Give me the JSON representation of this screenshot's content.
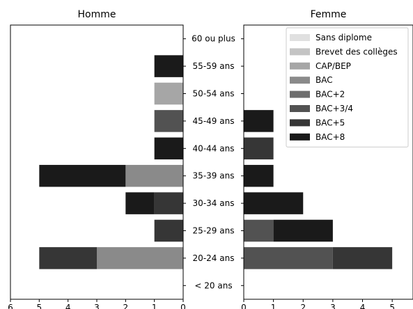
{
  "chart_data": {
    "type": "bar",
    "orientation": "horizontal",
    "stacked": true,
    "layout": "population-pyramid",
    "categories": [
      "< 20 ans",
      "20-24 ans",
      "25-29 ans",
      "30-34 ans",
      "35-39 ans",
      "40-44 ans",
      "45-49 ans",
      "50-54 ans",
      "55-59 ans",
      "60 ou plus"
    ],
    "series_colors": {
      "Sans diplome": "#e0e0e0",
      "Brevet des collèges": "#c4c4c4",
      "CAP/BEP": "#a6a6a6",
      "BAC": "#8a8a8a",
      "BAC+2": "#6e6e6e",
      "BAC+3/4": "#525252",
      "BAC+5": "#363636",
      "BAC+8": "#1a1a1a"
    },
    "legend": {
      "position": "upper-right",
      "panel": "Femme",
      "entries": [
        "Sans diplome",
        "Brevet des collèges",
        "CAP/BEP",
        "BAC",
        "BAC+2",
        "BAC+3/4",
        "BAC+5",
        "BAC+8"
      ]
    },
    "panels": [
      {
        "title": "Homme",
        "xlim": [
          6,
          0
        ],
        "inverted": true,
        "xticks": [
          6,
          5,
          4,
          3,
          2,
          1,
          0
        ],
        "series": [
          {
            "name": "Sans diplome",
            "values": [
              0,
              0,
              0,
              0,
              0,
              0,
              0,
              0,
              0,
              0
            ]
          },
          {
            "name": "Brevet des collèges",
            "values": [
              0,
              0,
              0,
              0,
              0,
              0,
              0,
              0,
              0,
              0
            ]
          },
          {
            "name": "CAP/BEP",
            "values": [
              0,
              0,
              0,
              0,
              0,
              0,
              0,
              1,
              0,
              0
            ]
          },
          {
            "name": "BAC",
            "values": [
              0,
              3,
              0,
              0,
              2,
              0,
              0,
              0,
              0,
              0
            ]
          },
          {
            "name": "BAC+2",
            "values": [
              0,
              0,
              0,
              0,
              0,
              0,
              0,
              0,
              0,
              0
            ]
          },
          {
            "name": "BAC+3/4",
            "values": [
              0,
              0,
              0,
              0,
              0,
              0,
              1,
              0,
              0,
              0
            ]
          },
          {
            "name": "BAC+5",
            "values": [
              0,
              2,
              1,
              1,
              0,
              0,
              0,
              0,
              0,
              0
            ]
          },
          {
            "name": "BAC+8",
            "values": [
              0,
              0,
              0,
              1,
              3,
              1,
              0,
              0,
              1,
              0
            ]
          }
        ]
      },
      {
        "title": "Femme",
        "xlim": [
          0,
          5.7
        ],
        "inverted": false,
        "xticks": [
          0,
          1,
          2,
          3,
          4,
          5
        ],
        "series": [
          {
            "name": "Sans diplome",
            "values": [
              0,
              0,
              0,
              0,
              0,
              0,
              0,
              0,
              0,
              0
            ]
          },
          {
            "name": "Brevet des collèges",
            "values": [
              0,
              0,
              0,
              0,
              0,
              0,
              0,
              0,
              0,
              0
            ]
          },
          {
            "name": "CAP/BEP",
            "values": [
              0,
              0,
              0,
              0,
              0,
              0,
              0,
              0,
              0,
              0
            ]
          },
          {
            "name": "BAC",
            "values": [
              0,
              0,
              0,
              0,
              0,
              0,
              0,
              0,
              0,
              0
            ]
          },
          {
            "name": "BAC+2",
            "values": [
              0,
              0,
              0,
              0,
              0,
              0,
              0,
              0,
              0,
              0
            ]
          },
          {
            "name": "BAC+3/4",
            "values": [
              0,
              3,
              1,
              0,
              0,
              0,
              0,
              0,
              0,
              0
            ]
          },
          {
            "name": "BAC+5",
            "values": [
              0,
              2,
              0,
              0,
              0,
              1,
              0,
              0,
              0,
              0
            ]
          },
          {
            "name": "BAC+8",
            "values": [
              0,
              0,
              2,
              2,
              1,
              0,
              1,
              0,
              0,
              0
            ]
          }
        ]
      }
    ]
  }
}
